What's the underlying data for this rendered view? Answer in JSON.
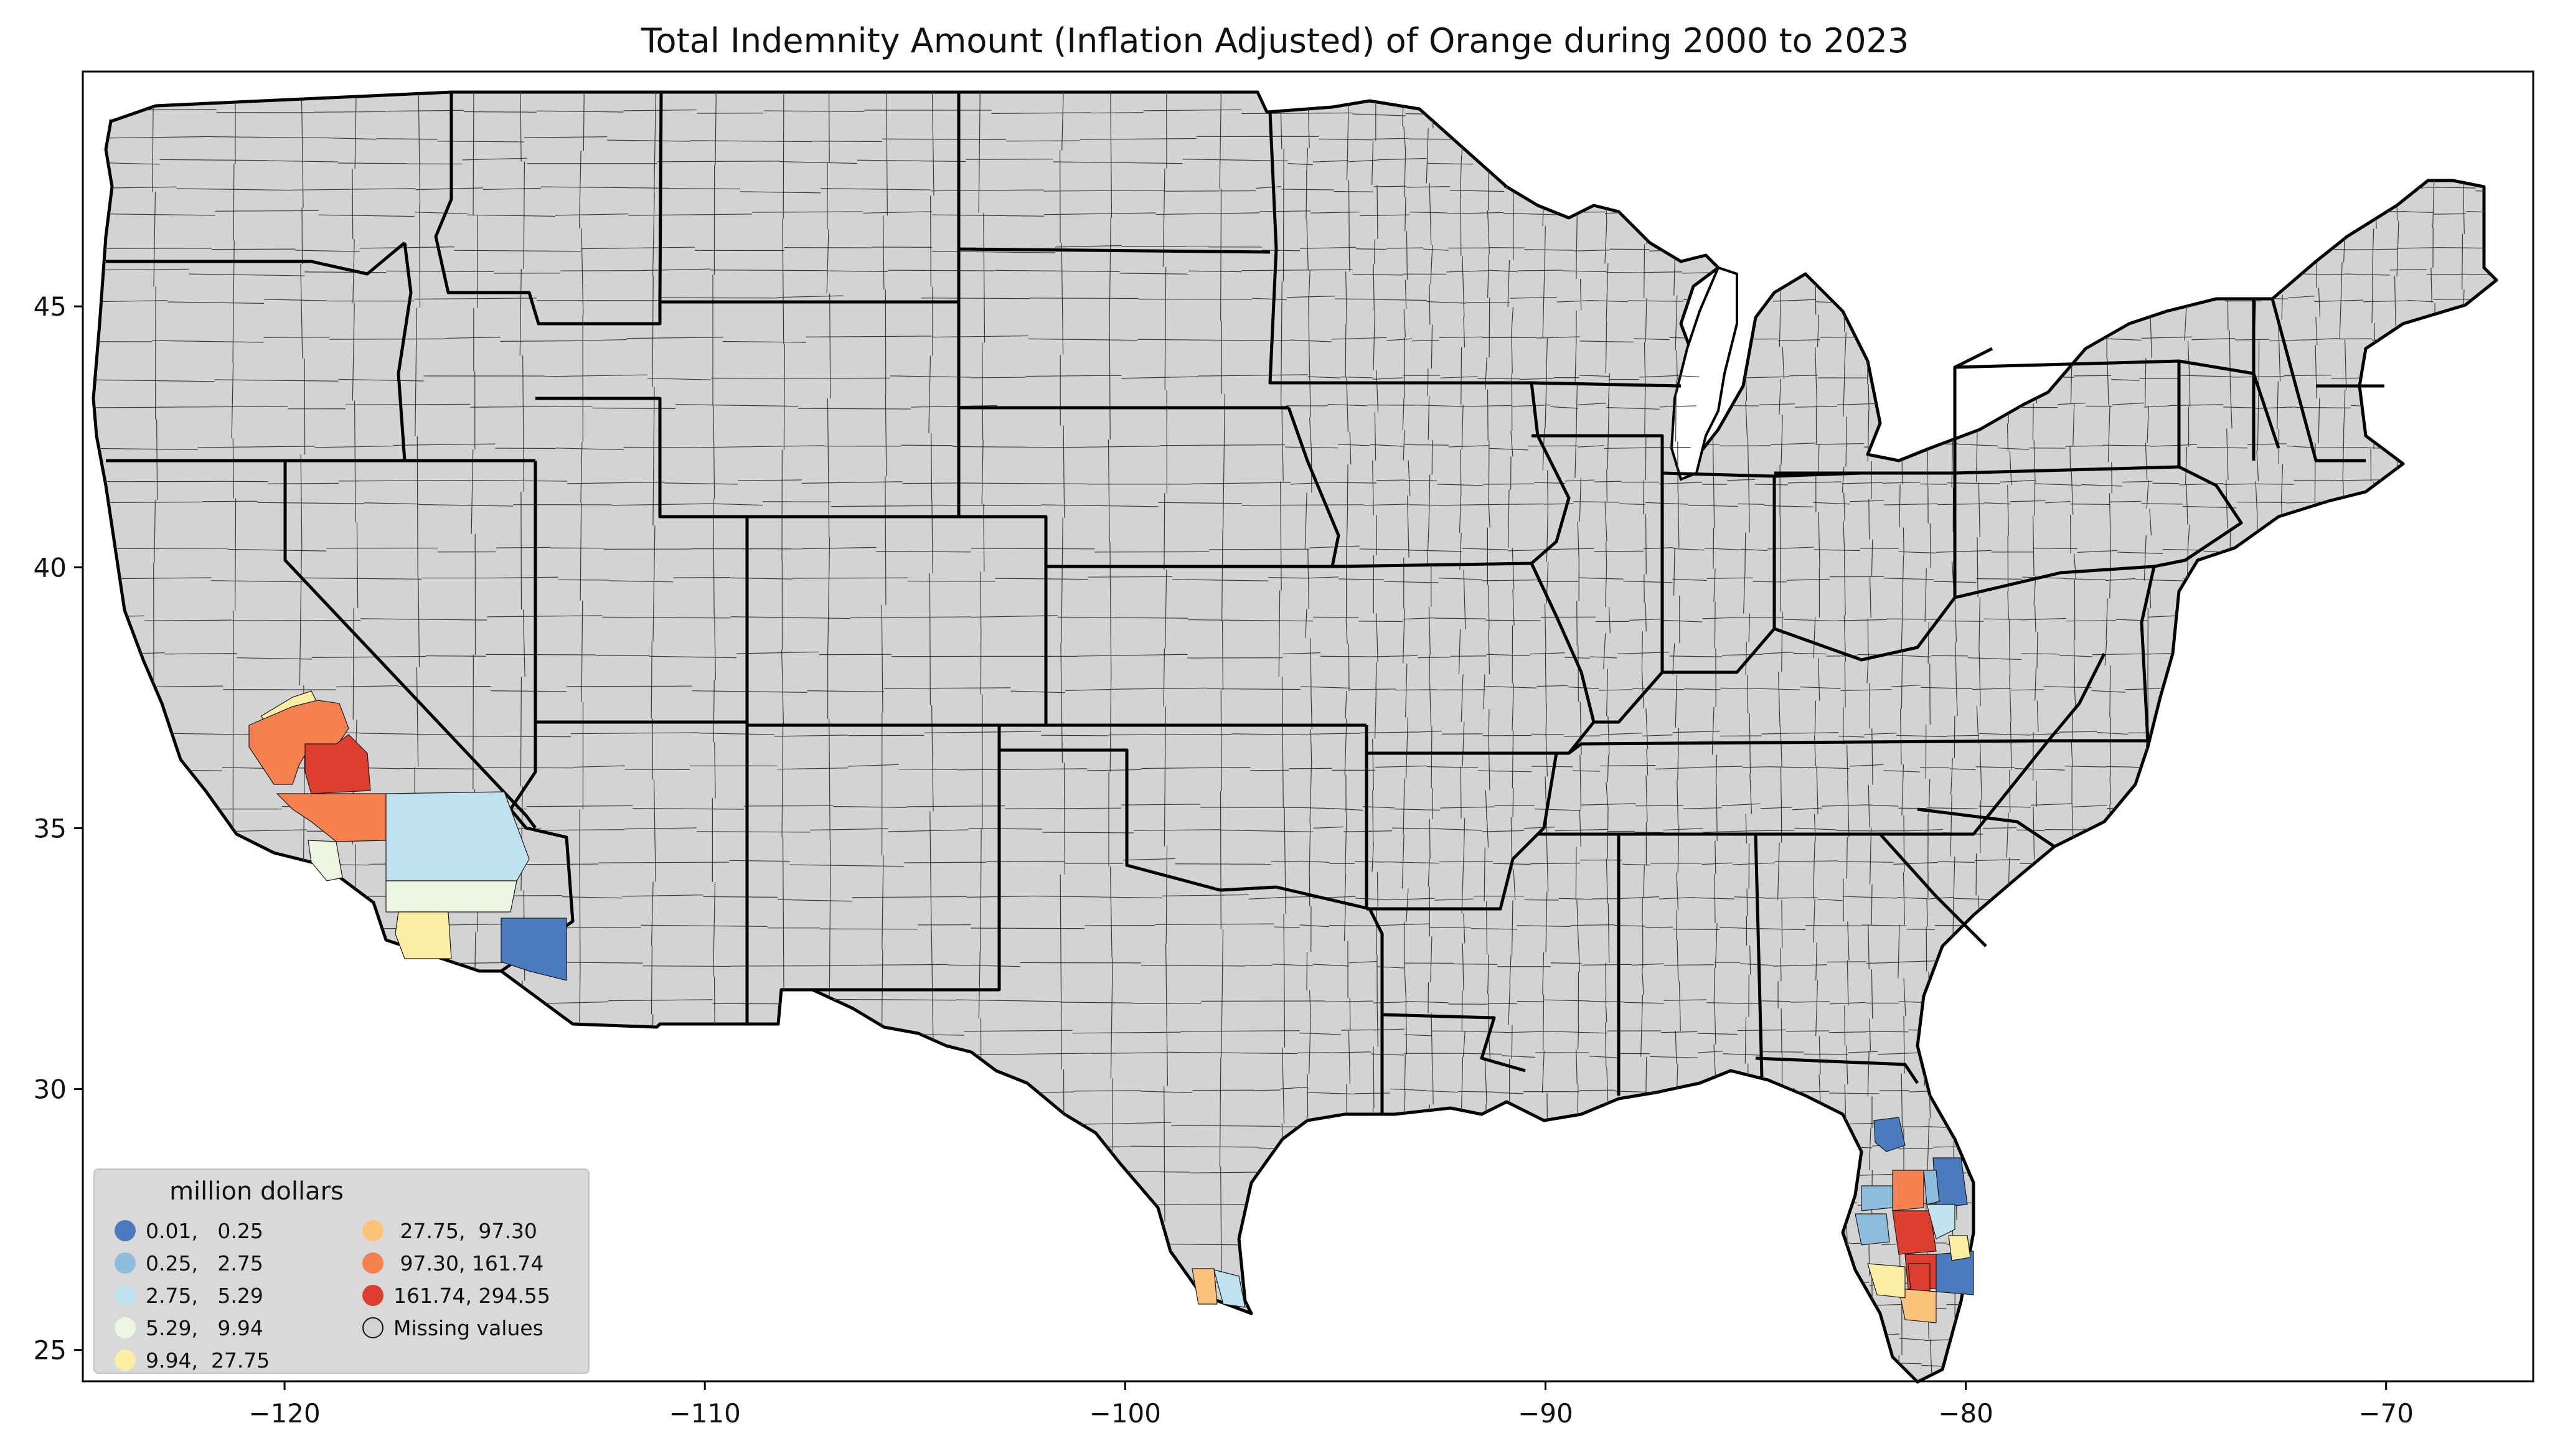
{
  "title": "Total Indemnity Amount  (Inflation Adjusted) of Orange during 2000 to 2023",
  "colors": {
    "background_land": "#d3d3d3",
    "border": "#000000",
    "class_1": "#4a7bbf",
    "class_2": "#8dbcdc",
    "class_3": "#bfe2ef",
    "class_4": "#edf6e1",
    "class_5": "#fdeea3",
    "class_6": "#fcc279",
    "class_7": "#f4814f",
    "class_8": "#dd3e2d"
  },
  "chart_data": {
    "type": "choropleth",
    "title": "Total Indemnity Amount  (Inflation Adjusted) of Orange during 2000 to 2023",
    "x_ticks": [
      "−120",
      "−110",
      "−100",
      "−90",
      "−80",
      "−70"
    ],
    "y_ticks": [
      "25",
      "30",
      "35",
      "40",
      "45"
    ],
    "xlim": [
      -124.8,
      -66.5
    ],
    "ylim": [
      24.4,
      49.5
    ],
    "legend": {
      "title": "million dollars",
      "placement": "lower-left",
      "entries": [
        {
          "label": "0.01,   0.25",
          "color": "#4a7bbf"
        },
        {
          "label": "0.25,   2.75",
          "color": "#8dbcdc"
        },
        {
          "label": "2.75,   5.29",
          "color": "#bfe2ef"
        },
        {
          "label": "5.29,   9.94",
          "color": "#edf6e1"
        },
        {
          "label": "9.94,  27.75",
          "color": "#fdeea3"
        },
        {
          "label": " 27.75,  97.30",
          "color": "#fcc279"
        },
        {
          "label": " 97.30, 161.74",
          "color": "#f4814f"
        },
        {
          "label": "161.74, 294.55",
          "color": "#dd3e2d"
        },
        {
          "label": "Missing values",
          "color": "#d3d3d3"
        }
      ]
    },
    "regions": [
      {
        "area": "California - San Joaquin Valley north",
        "class": 5
      },
      {
        "area": "California - Fresno area",
        "class": 7
      },
      {
        "area": "California - Tulare",
        "class": 8
      },
      {
        "area": "California - Kern",
        "class": 7
      },
      {
        "area": "California - San Bernardino",
        "class": 3
      },
      {
        "area": "California - Riverside",
        "class": 4
      },
      {
        "area": "California - Ventura",
        "class": 4
      },
      {
        "area": "California - San Diego",
        "class": 5
      },
      {
        "area": "Arizona - Yuma",
        "class": 1
      },
      {
        "area": "Texas - Hidalgo",
        "class": 6
      },
      {
        "area": "Texas - Cameron",
        "class": 3
      },
      {
        "area": "Florida - Lake",
        "class": 1
      },
      {
        "area": "Florida - Polk",
        "class": 7
      },
      {
        "area": "Florida - Highlands",
        "class": 8
      },
      {
        "area": "Florida - DeSoto",
        "class": 8
      },
      {
        "area": "Florida - Hardee",
        "class": 2
      },
      {
        "area": "Florida - Indian River",
        "class": 1
      },
      {
        "area": "Florida - St. Lucie",
        "class": 1
      },
      {
        "area": "Florida - Hendry",
        "class": 8
      },
      {
        "area": "Florida - Collier",
        "class": 6
      },
      {
        "area": "Florida - Lee",
        "class": 5
      },
      {
        "area": "Florida - Manatee",
        "class": 2
      },
      {
        "area": "Florida - Osceola",
        "class": 2
      },
      {
        "area": "Florida - Okeechobee",
        "class": 3
      },
      {
        "area": "Florida - Martin",
        "class": 5
      }
    ]
  }
}
